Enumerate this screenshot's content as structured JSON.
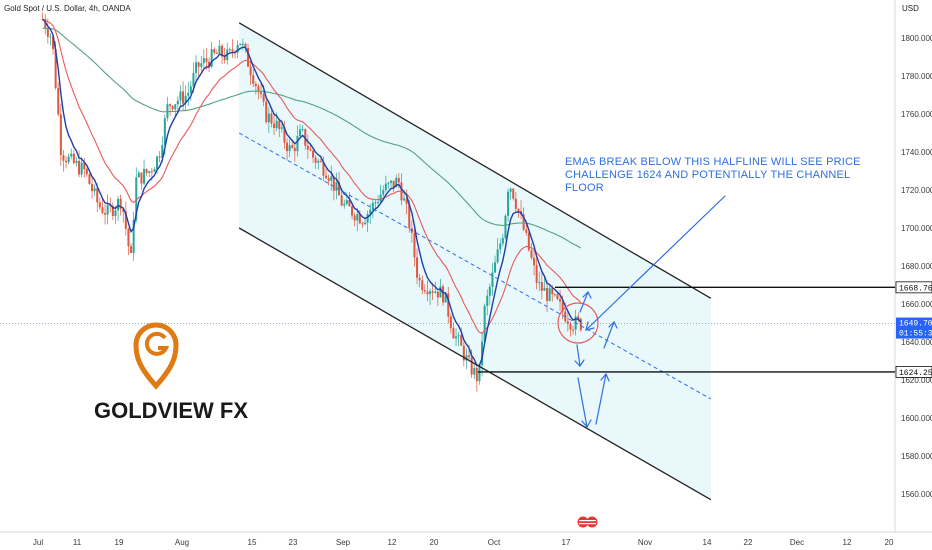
{
  "header": {
    "title": "Gold Spot / U.S. Dollar, 4h, OANDA"
  },
  "price_axis": {
    "currency_label": "USD"
  },
  "annotation": {
    "lines": [
      "EMA5 BREAK BELOW THIS HALFLINE WILL SEE PRICE",
      "CHALLENGE 1624 AND POTENTIALLY THE CHANNEL",
      "FLOOR"
    ]
  },
  "logo": {
    "text": "GOLDVIEW FX"
  },
  "levels": {
    "upper": {
      "label": "1668.769",
      "value": 1668.769
    },
    "current": {
      "label": "1649.700",
      "timer": "01:55:34",
      "value": 1649.7
    },
    "lower": {
      "label": "1624.258",
      "value": 1624.258
    }
  },
  "colors": {
    "up_candle": "#26a69a",
    "down_candle": "#e0573e",
    "ema_blue": "#1e3fa8",
    "ema_red": "#e85a5a",
    "ema_green": "#52a383",
    "channel_fill": "#e6f7fb",
    "arrow_blue": "#2f6fe0",
    "logo_orange": "#e07a12"
  },
  "chart_data": {
    "type": "candlestick",
    "title": "Gold Spot / U.S. Dollar, 4h, OANDA",
    "y_unit": "USD",
    "ylim": [
      1550,
      1820
    ],
    "y_ticks": [
      1560,
      1580,
      1600,
      1620,
      1640,
      1660,
      1680,
      1700,
      1720,
      1740,
      1760,
      1780,
      1800
    ],
    "y_tick_labels": [
      "1560.000",
      "1580.000",
      "1600.000",
      "1620.000",
      "1640.000",
      "1660.000",
      "1680.000",
      "1700.000",
      "1720.000",
      "1740.000",
      "1760.000",
      "1780.000",
      "1800.000"
    ],
    "x_tick_labels": [
      "Jul",
      "11",
      "19",
      "Aug",
      "15",
      "23",
      "Sep",
      "12",
      "20",
      "Oct",
      "17",
      "Nov",
      "14",
      "22",
      "Dec",
      "12",
      "20"
    ],
    "price_path": [
      {
        "d": "Jul 2",
        "p": 1810
      },
      {
        "d": "Jul 4",
        "p": 1800
      },
      {
        "d": "Jul 6",
        "p": 1740
      },
      {
        "d": "Jul 8",
        "p": 1735
      },
      {
        "d": "Jul 11",
        "p": 1730
      },
      {
        "d": "Jul 14",
        "p": 1712
      },
      {
        "d": "Jul 16",
        "p": 1708
      },
      {
        "d": "Jul 19",
        "p": 1715
      },
      {
        "d": "Jul 21",
        "p": 1682
      },
      {
        "d": "Jul 22",
        "p": 1725
      },
      {
        "d": "Jul 25",
        "p": 1730
      },
      {
        "d": "Jul 27",
        "p": 1738
      },
      {
        "d": "Jul 29",
        "p": 1765
      },
      {
        "d": "Aug 2",
        "p": 1770
      },
      {
        "d": "Aug 4",
        "p": 1785
      },
      {
        "d": "Aug 8",
        "p": 1792
      },
      {
        "d": "Aug 10",
        "p": 1790
      },
      {
        "d": "Aug 12",
        "p": 1800
      },
      {
        "d": "Aug 15",
        "p": 1778
      },
      {
        "d": "Aug 17",
        "p": 1760
      },
      {
        "d": "Aug 19",
        "p": 1755
      },
      {
        "d": "Aug 22",
        "p": 1740
      },
      {
        "d": "Aug 24",
        "p": 1750
      },
      {
        "d": "Aug 26",
        "p": 1738
      },
      {
        "d": "Aug 29",
        "p": 1730
      },
      {
        "d": "Sep 1",
        "p": 1712
      },
      {
        "d": "Sep 5",
        "p": 1705
      },
      {
        "d": "Sep 7",
        "p": 1712
      },
      {
        "d": "Sep 9",
        "p": 1720
      },
      {
        "d": "Sep 12",
        "p": 1725
      },
      {
        "d": "Sep 14",
        "p": 1705
      },
      {
        "d": "Sep 16",
        "p": 1672
      },
      {
        "d": "Sep 19",
        "p": 1668
      },
      {
        "d": "Sep 21",
        "p": 1665
      },
      {
        "d": "Sep 23",
        "p": 1645
      },
      {
        "d": "Sep 26",
        "p": 1628
      },
      {
        "d": "Sep 28",
        "p": 1620
      },
      {
        "d": "Sep 29",
        "p": 1655
      },
      {
        "d": "Oct 3",
        "p": 1700
      },
      {
        "d": "Oct 4",
        "p": 1725
      },
      {
        "d": "Oct 5",
        "p": 1718
      },
      {
        "d": "Oct 7",
        "p": 1700
      },
      {
        "d": "Oct 10",
        "p": 1670
      },
      {
        "d": "Oct 12",
        "p": 1665
      },
      {
        "d": "Oct 14",
        "p": 1660
      },
      {
        "d": "Oct 17",
        "p": 1650
      },
      {
        "d": "Oct 19",
        "p": 1649.7
      }
    ],
    "overlays": [
      {
        "name": "EMA5",
        "color": "#1e3fa8"
      },
      {
        "name": "EMA20",
        "color": "#e85a5a"
      },
      {
        "name": "EMA100",
        "color": "#52a383"
      }
    ],
    "channel": {
      "upper": [
        {
          "d": "Aug 12",
          "p": 1808
        },
        {
          "d": "Nov 14",
          "p": 1663
        }
      ],
      "median": [
        {
          "d": "Aug 12",
          "p": 1750
        },
        {
          "d": "Nov 14",
          "p": 1610
        }
      ],
      "lower": [
        {
          "d": "Aug 12",
          "p": 1700
        },
        {
          "d": "Nov 14",
          "p": 1557
        }
      ]
    },
    "horizontal_levels": [
      1668.769,
      1624.258
    ],
    "current_price": 1649.7,
    "grid": false
  }
}
